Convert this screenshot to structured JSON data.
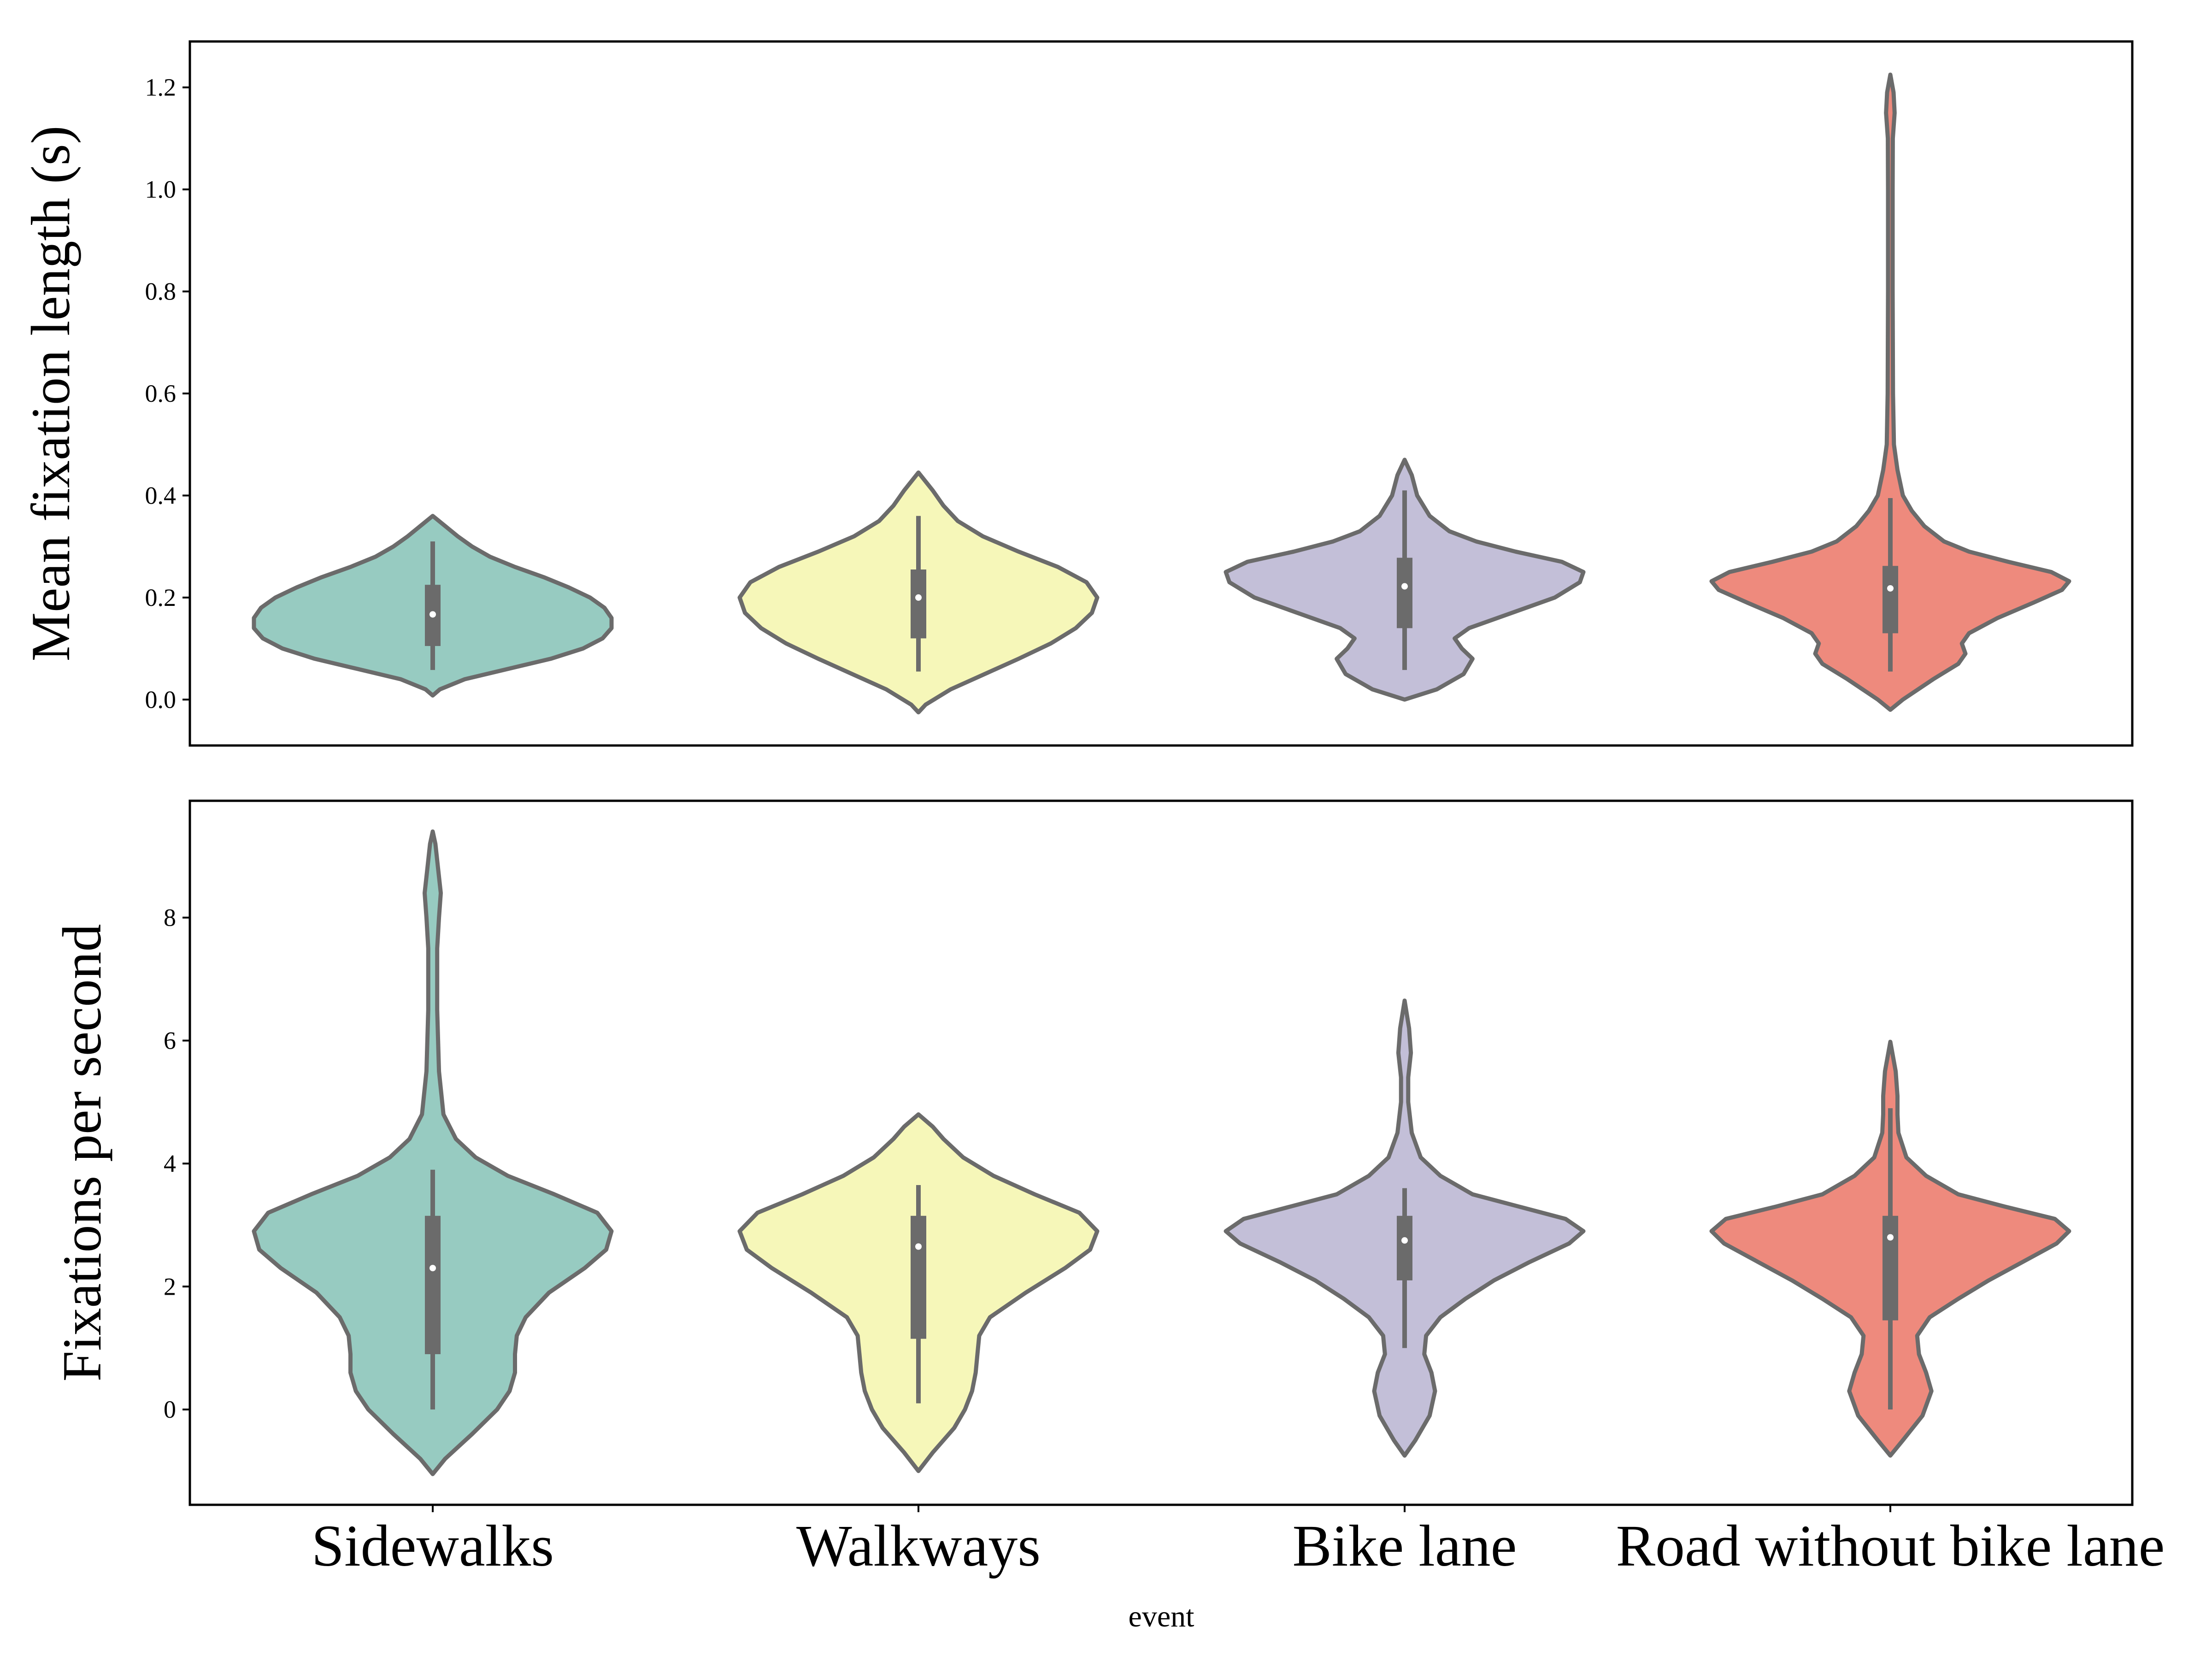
{
  "chart_data": {
    "type": "violin",
    "xlabel": "event",
    "categories": [
      "Sidewalks",
      "Walkways",
      "Bike lane",
      "Road without bike lane"
    ],
    "colors": [
      "#97cbc1",
      "#f6f7b9",
      "#c3bfd8",
      "#ee8a7d"
    ],
    "outline_color": "#6b6b6b",
    "panels": [
      {
        "ylabel": "Mean fixation length (s)",
        "ylim": [
          -0.09,
          1.29
        ],
        "yticks": [
          0.0,
          0.2,
          0.4,
          0.6,
          0.8,
          1.0,
          1.2
        ],
        "tick_labels": [
          "0.0",
          "0.2",
          "0.4",
          "0.6",
          "0.8",
          "1.0",
          "1.2"
        ],
        "series": [
          {
            "category": "Sidewalks",
            "median": 0.167,
            "q1": 0.105,
            "q3": 0.225,
            "whisker_low": 0.058,
            "whisker_high": 0.31,
            "density": [
              [
                0.008,
                0
              ],
              [
                0.02,
                0.04
              ],
              [
                0.04,
                0.18
              ],
              [
                0.06,
                0.42
              ],
              [
                0.08,
                0.66
              ],
              [
                0.1,
                0.84
              ],
              [
                0.12,
                0.95
              ],
              [
                0.14,
                1.0
              ],
              [
                0.16,
                1.0
              ],
              [
                0.18,
                0.96
              ],
              [
                0.2,
                0.88
              ],
              [
                0.22,
                0.76
              ],
              [
                0.24,
                0.62
              ],
              [
                0.26,
                0.46
              ],
              [
                0.28,
                0.32
              ],
              [
                0.3,
                0.22
              ],
              [
                0.32,
                0.14
              ],
              [
                0.34,
                0.07
              ],
              [
                0.36,
                0
              ]
            ]
          },
          {
            "category": "Walkways",
            "median": 0.2,
            "q1": 0.12,
            "q3": 0.255,
            "whisker_low": 0.055,
            "whisker_high": 0.36,
            "density": [
              [
                -0.025,
                0
              ],
              [
                -0.01,
                0.04
              ],
              [
                0.02,
                0.18
              ],
              [
                0.05,
                0.37
              ],
              [
                0.08,
                0.56
              ],
              [
                0.11,
                0.74
              ],
              [
                0.14,
                0.88
              ],
              [
                0.17,
                0.97
              ],
              [
                0.2,
                1.0
              ],
              [
                0.23,
                0.94
              ],
              [
                0.26,
                0.78
              ],
              [
                0.29,
                0.56
              ],
              [
                0.32,
                0.36
              ],
              [
                0.35,
                0.22
              ],
              [
                0.38,
                0.14
              ],
              [
                0.41,
                0.08
              ],
              [
                0.445,
                0
              ]
            ]
          },
          {
            "category": "Bike lane",
            "median": 0.222,
            "q1": 0.14,
            "q3": 0.278,
            "whisker_low": 0.058,
            "whisker_high": 0.41,
            "density": [
              [
                0.0,
                0
              ],
              [
                0.02,
                0.18
              ],
              [
                0.05,
                0.33
              ],
              [
                0.08,
                0.38
              ],
              [
                0.1,
                0.32
              ],
              [
                0.12,
                0.28
              ],
              [
                0.14,
                0.36
              ],
              [
                0.17,
                0.6
              ],
              [
                0.2,
                0.84
              ],
              [
                0.23,
                0.98
              ],
              [
                0.25,
                1.0
              ],
              [
                0.27,
                0.88
              ],
              [
                0.29,
                0.62
              ],
              [
                0.31,
                0.4
              ],
              [
                0.33,
                0.25
              ],
              [
                0.36,
                0.14
              ],
              [
                0.4,
                0.07
              ],
              [
                0.44,
                0.04
              ],
              [
                0.47,
                0
              ]
            ]
          },
          {
            "category": "Road without bike lane",
            "median": 0.218,
            "q1": 0.13,
            "q3": 0.262,
            "whisker_low": 0.055,
            "whisker_high": 0.395,
            "density": [
              [
                -0.02,
                0
              ],
              [
                0.0,
                0.07
              ],
              [
                0.04,
                0.24
              ],
              [
                0.07,
                0.38
              ],
              [
                0.09,
                0.42
              ],
              [
                0.11,
                0.4
              ],
              [
                0.13,
                0.44
              ],
              [
                0.16,
                0.6
              ],
              [
                0.19,
                0.8
              ],
              [
                0.215,
                0.96
              ],
              [
                0.232,
                1.0
              ],
              [
                0.25,
                0.9
              ],
              [
                0.27,
                0.66
              ],
              [
                0.29,
                0.44
              ],
              [
                0.31,
                0.3
              ],
              [
                0.34,
                0.19
              ],
              [
                0.37,
                0.12
              ],
              [
                0.4,
                0.07
              ],
              [
                0.45,
                0.04
              ],
              [
                0.5,
                0.02
              ],
              [
                0.6,
                0.015
              ],
              [
                0.8,
                0.013
              ],
              [
                1.0,
                0.013
              ],
              [
                1.1,
                0.014
              ],
              [
                1.15,
                0.024
              ],
              [
                1.19,
                0.018
              ],
              [
                1.225,
                0
              ]
            ]
          }
        ]
      },
      {
        "ylabel": "Fixations per second",
        "ylim": [
          -1.55,
          9.9
        ],
        "yticks": [
          0,
          2,
          4,
          6,
          8
        ],
        "tick_labels": [
          "0",
          "2",
          "4",
          "6",
          "8"
        ],
        "series": [
          {
            "category": "Sidewalks",
            "median": 2.3,
            "q1": 0.9,
            "q3": 3.15,
            "whisker_low": 0.0,
            "whisker_high": 3.9,
            "density": [
              [
                -1.05,
                0
              ],
              [
                -0.8,
                0.07
              ],
              [
                -0.4,
                0.22
              ],
              [
                0.0,
                0.36
              ],
              [
                0.3,
                0.43
              ],
              [
                0.6,
                0.46
              ],
              [
                0.9,
                0.46
              ],
              [
                1.2,
                0.47
              ],
              [
                1.5,
                0.52
              ],
              [
                1.9,
                0.65
              ],
              [
                2.3,
                0.85
              ],
              [
                2.6,
                0.97
              ],
              [
                2.9,
                1.0
              ],
              [
                3.2,
                0.92
              ],
              [
                3.5,
                0.68
              ],
              [
                3.8,
                0.42
              ],
              [
                4.1,
                0.24
              ],
              [
                4.4,
                0.13
              ],
              [
                4.8,
                0.06
              ],
              [
                5.5,
                0.035
              ],
              [
                6.5,
                0.025
              ],
              [
                7.5,
                0.025
              ],
              [
                8.0,
                0.035
              ],
              [
                8.4,
                0.045
              ],
              [
                8.8,
                0.03
              ],
              [
                9.2,
                0.015
              ],
              [
                9.4,
                0
              ]
            ]
          },
          {
            "category": "Walkways",
            "median": 2.65,
            "q1": 1.15,
            "q3": 3.15,
            "whisker_low": 0.1,
            "whisker_high": 3.65,
            "density": [
              [
                -1.0,
                0
              ],
              [
                -0.7,
                0.08
              ],
              [
                -0.3,
                0.2
              ],
              [
                0.0,
                0.26
              ],
              [
                0.3,
                0.3
              ],
              [
                0.6,
                0.32
              ],
              [
                0.9,
                0.33
              ],
              [
                1.2,
                0.34
              ],
              [
                1.5,
                0.4
              ],
              [
                1.9,
                0.6
              ],
              [
                2.3,
                0.82
              ],
              [
                2.6,
                0.96
              ],
              [
                2.9,
                1.0
              ],
              [
                3.2,
                0.9
              ],
              [
                3.5,
                0.65
              ],
              [
                3.8,
                0.42
              ],
              [
                4.1,
                0.25
              ],
              [
                4.4,
                0.14
              ],
              [
                4.6,
                0.08
              ],
              [
                4.8,
                0
              ]
            ]
          },
          {
            "category": "Bike lane",
            "median": 2.75,
            "q1": 2.1,
            "q3": 3.15,
            "whisker_low": 1.0,
            "whisker_high": 3.6,
            "density": [
              [
                -0.75,
                0
              ],
              [
                -0.5,
                0.06
              ],
              [
                -0.1,
                0.14
              ],
              [
                0.3,
                0.17
              ],
              [
                0.6,
                0.15
              ],
              [
                0.9,
                0.11
              ],
              [
                1.2,
                0.12
              ],
              [
                1.5,
                0.2
              ],
              [
                1.8,
                0.34
              ],
              [
                2.1,
                0.5
              ],
              [
                2.4,
                0.7
              ],
              [
                2.7,
                0.92
              ],
              [
                2.9,
                1.0
              ],
              [
                3.1,
                0.9
              ],
              [
                3.3,
                0.64
              ],
              [
                3.5,
                0.38
              ],
              [
                3.8,
                0.2
              ],
              [
                4.1,
                0.09
              ],
              [
                4.5,
                0.04
              ],
              [
                5.0,
                0.02
              ],
              [
                5.4,
                0.02
              ],
              [
                5.8,
                0.035
              ],
              [
                6.2,
                0.025
              ],
              [
                6.65,
                0
              ]
            ]
          },
          {
            "category": "Road without bike lane",
            "median": 2.8,
            "q1": 1.45,
            "q3": 3.15,
            "whisker_low": 0.0,
            "whisker_high": 4.9,
            "density": [
              [
                -0.75,
                0
              ],
              [
                -0.5,
                0.07
              ],
              [
                -0.1,
                0.18
              ],
              [
                0.3,
                0.23
              ],
              [
                0.6,
                0.2
              ],
              [
                0.9,
                0.16
              ],
              [
                1.2,
                0.15
              ],
              [
                1.5,
                0.22
              ],
              [
                1.8,
                0.38
              ],
              [
                2.1,
                0.55
              ],
              [
                2.4,
                0.74
              ],
              [
                2.7,
                0.93
              ],
              [
                2.9,
                1.0
              ],
              [
                3.1,
                0.92
              ],
              [
                3.3,
                0.64
              ],
              [
                3.5,
                0.38
              ],
              [
                3.8,
                0.2
              ],
              [
                4.1,
                0.09
              ],
              [
                4.5,
                0.045
              ],
              [
                4.8,
                0.04
              ],
              [
                5.1,
                0.04
              ],
              [
                5.5,
                0.03
              ],
              [
                5.98,
                0
              ]
            ]
          }
        ]
      }
    ]
  }
}
